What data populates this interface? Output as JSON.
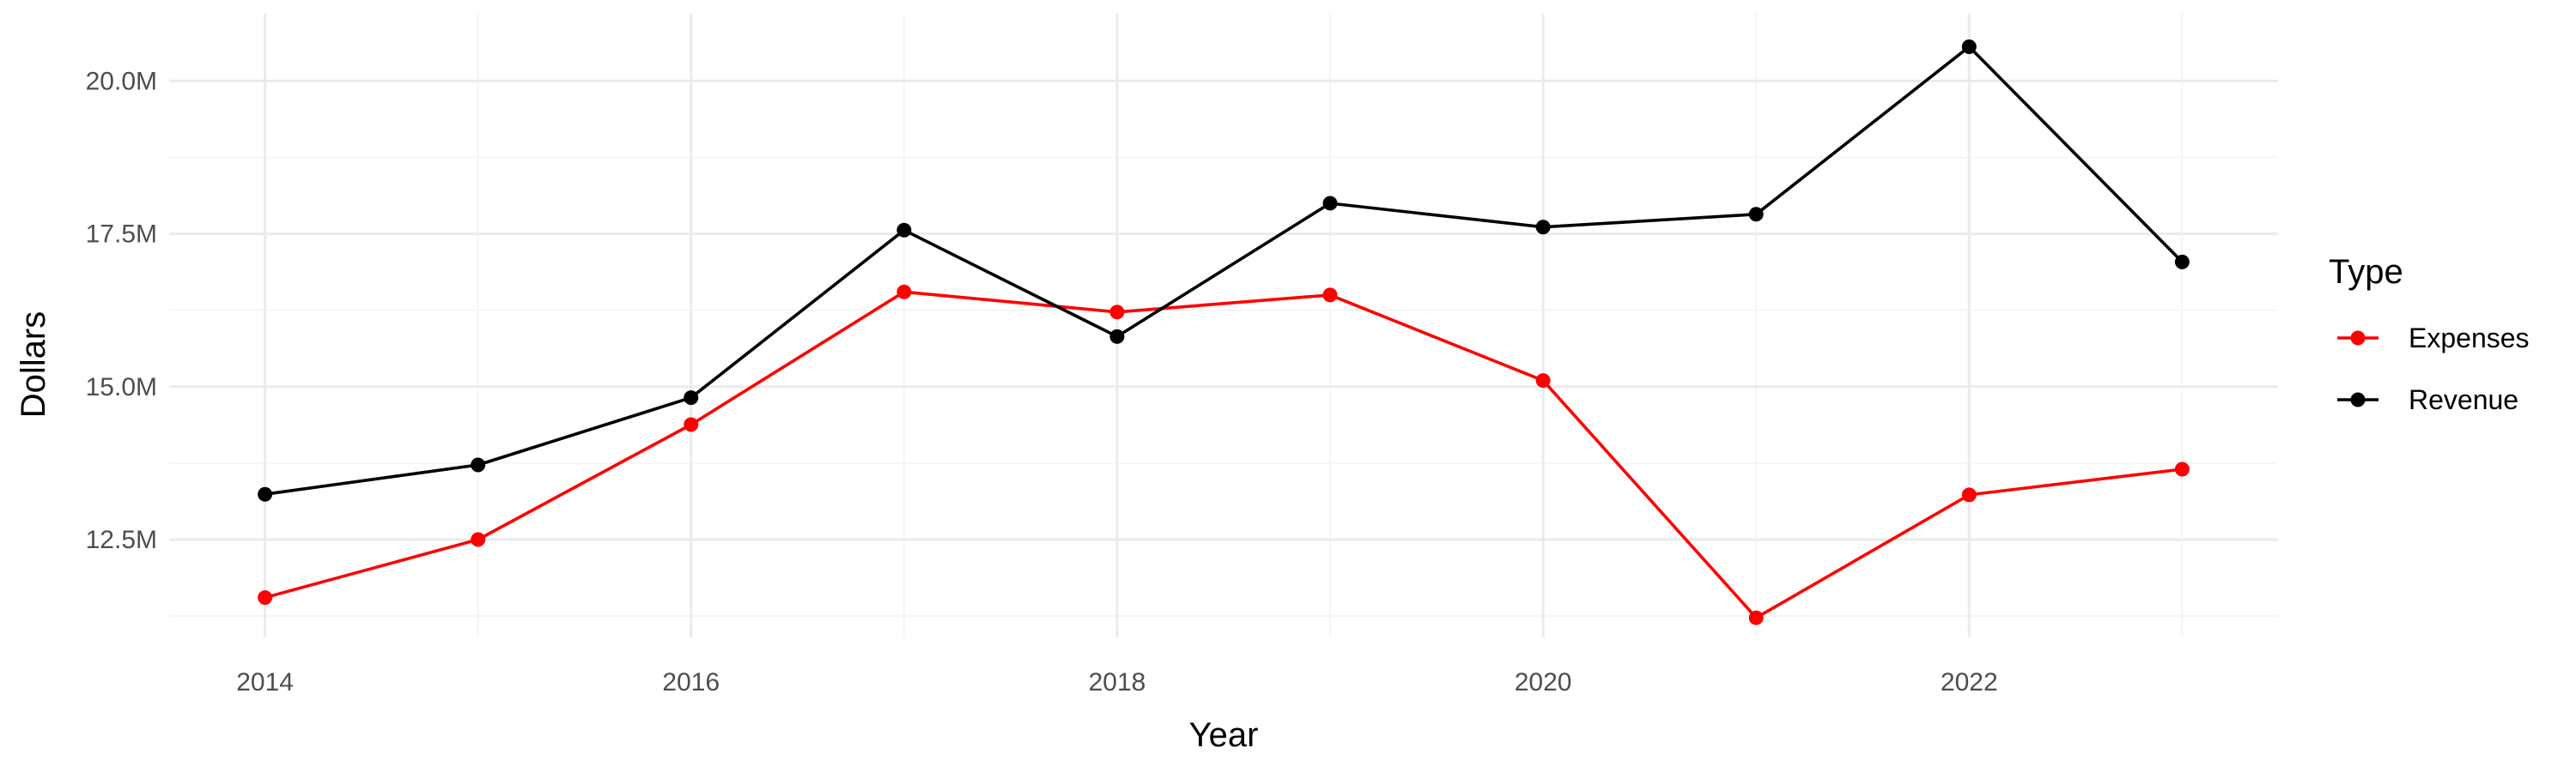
{
  "chart_data": {
    "type": "line",
    "x": [
      2014,
      2015,
      2016,
      2017,
      2018,
      2019,
      2020,
      2021,
      2022,
      2023
    ],
    "x_ticks": [
      2014,
      2016,
      2018,
      2020,
      2022
    ],
    "x_tick_labels": [
      "2014",
      "2016",
      "2018",
      "2020",
      "2022"
    ],
    "y_ticks": [
      12500000,
      15000000,
      17500000,
      20000000
    ],
    "y_tick_labels": [
      "12.5M",
      "15.0M",
      "17.5M",
      "20.0M"
    ],
    "xlim": [
      2013.55,
      2023.45
    ],
    "ylim": [
      10900000,
      21100000
    ],
    "xlabel": "Year",
    "ylabel": "Dollars",
    "grid": true,
    "legend": {
      "title": "Type",
      "position": "right"
    },
    "series": [
      {
        "name": "Expenses",
        "color": "#ff0000",
        "values": [
          11550000,
          12500000,
          14380000,
          16550000,
          16220000,
          16500000,
          15100000,
          11220000,
          13230000,
          13650000
        ]
      },
      {
        "name": "Revenue",
        "color": "#000000",
        "values": [
          13240000,
          13720000,
          14820000,
          17560000,
          15820000,
          18000000,
          17610000,
          17820000,
          20560000,
          17040000
        ]
      }
    ]
  }
}
